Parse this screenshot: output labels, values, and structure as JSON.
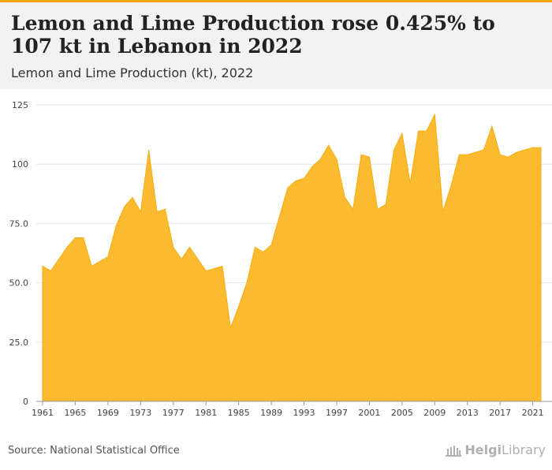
{
  "header": {
    "title": "Lemon and Lime Production rose 0.425% to 107 kt in Lebanon in 2022",
    "subtitle": "Lemon and Lime Production (kt), 2022"
  },
  "footer": {
    "source": "Source: National Statistical Office",
    "logo_part1": "Helgi",
    "logo_part2": "Library"
  },
  "colors": {
    "area_fill": "#fbbb31",
    "area_stroke": "#f5ad10",
    "accent": "#f5a800",
    "grid": "#e6e6e6"
  },
  "chart_data": {
    "type": "area",
    "title": "Lemon and Lime Production (kt), 2022",
    "xlabel": "",
    "ylabel": "",
    "ylim": [
      0,
      125
    ],
    "yticks": [
      "0",
      "25.0",
      "50.0",
      "75.0",
      "100",
      "125"
    ],
    "xticks": [
      "1961",
      "1965",
      "1969",
      "1973",
      "1977",
      "1981",
      "1985",
      "1989",
      "1993",
      "1997",
      "2001",
      "2005",
      "2009",
      "2013",
      "2017",
      "2021"
    ],
    "grid": true,
    "x": [
      1961,
      1962,
      1963,
      1964,
      1965,
      1966,
      1967,
      1968,
      1969,
      1970,
      1971,
      1972,
      1973,
      1974,
      1975,
      1976,
      1977,
      1978,
      1979,
      1980,
      1981,
      1982,
      1983,
      1984,
      1985,
      1986,
      1987,
      1988,
      1989,
      1990,
      1991,
      1992,
      1993,
      1994,
      1995,
      1996,
      1997,
      1998,
      1999,
      2000,
      2001,
      2002,
      2003,
      2004,
      2005,
      2006,
      2007,
      2008,
      2009,
      2010,
      2011,
      2012,
      2013,
      2014,
      2015,
      2016,
      2017,
      2018,
      2019,
      2020,
      2021,
      2022
    ],
    "values": [
      57,
      55,
      60,
      65,
      69,
      69,
      57,
      59,
      61,
      74,
      82,
      86,
      80,
      106,
      80,
      81,
      65,
      60,
      65,
      60,
      55,
      56,
      57,
      31,
      40,
      50,
      65,
      63,
      66,
      78,
      90,
      93,
      94,
      99,
      102,
      108,
      102,
      86,
      81,
      104,
      103,
      81,
      83,
      106,
      113,
      92,
      114,
      114,
      121,
      80,
      91,
      104,
      104,
      105,
      106,
      116,
      104,
      103,
      105,
      106,
      107,
      107
    ]
  }
}
